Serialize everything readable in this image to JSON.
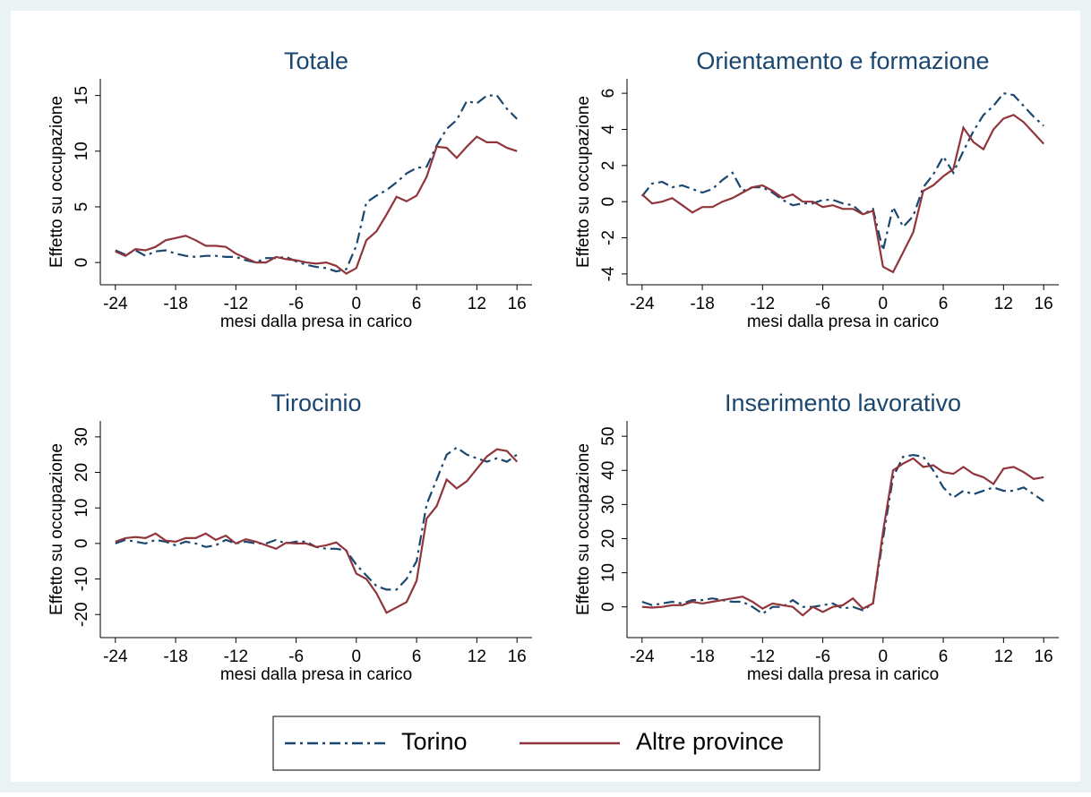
{
  "chart_data": [
    {
      "type": "line",
      "title": "Totale",
      "xlabel": "mesi dalla presa in carico",
      "ylabel": "Effetto su occupazione",
      "x": [
        -24,
        -23,
        -22,
        -21,
        -20,
        -19,
        -18,
        -17,
        -16,
        -15,
        -14,
        -13,
        -12,
        -11,
        -10,
        -9,
        -8,
        -7,
        -6,
        -5,
        -4,
        -3,
        -2,
        -1,
        0,
        1,
        2,
        3,
        4,
        5,
        6,
        7,
        8,
        9,
        10,
        11,
        12,
        13,
        14,
        15,
        16
      ],
      "xlim": [
        -25.5,
        17.5
      ],
      "xticks": [
        -24,
        -18,
        -12,
        -6,
        0,
        6,
        12,
        16
      ],
      "ylim": [
        -2,
        16.5
      ],
      "yticks": [
        0,
        5,
        10,
        15
      ],
      "series": [
        {
          "values": [
            1.1,
            0.7,
            1.1,
            0.6,
            1.0,
            1.1,
            0.8,
            0.6,
            0.5,
            0.6,
            0.6,
            0.5,
            0.5,
            0.2,
            0.0,
            0.4,
            0.4,
            0.5,
            0.1,
            -0.2,
            -0.4,
            -0.5,
            -0.8,
            -0.6,
            1.5,
            5.4,
            6.0,
            6.5,
            7.2,
            8.0,
            8.5,
            8.6,
            10.5,
            12.0,
            12.8,
            14.5,
            14.3,
            15.0,
            15.0,
            13.8,
            12.9
          ]
        },
        {
          "values": [
            1.0,
            0.6,
            1.2,
            1.1,
            1.4,
            2.0,
            2.2,
            2.4,
            2.0,
            1.5,
            1.5,
            1.4,
            0.8,
            0.4,
            0.0,
            0.0,
            0.5,
            0.3,
            0.2,
            0.0,
            -0.1,
            0.0,
            -0.3,
            -1.0,
            -0.5,
            2.0,
            2.8,
            4.3,
            5.9,
            5.5,
            6.0,
            7.7,
            10.4,
            10.3,
            9.4,
            10.4,
            11.3,
            10.8,
            10.8,
            10.3,
            10.0
          ]
        }
      ]
    },
    {
      "type": "line",
      "title": "Orientamento e formazione",
      "xlabel": "mesi dalla presa in carico",
      "ylabel": "Effetto su occupazione",
      "x": [
        -24,
        -23,
        -22,
        -21,
        -20,
        -19,
        -18,
        -17,
        -16,
        -15,
        -14,
        -13,
        -12,
        -11,
        -10,
        -9,
        -8,
        -7,
        -6,
        -5,
        -4,
        -3,
        -2,
        -1,
        0,
        1,
        2,
        3,
        4,
        5,
        6,
        7,
        8,
        9,
        10,
        11,
        12,
        13,
        14,
        15,
        16
      ],
      "xlim": [
        -25.5,
        17.5
      ],
      "xticks": [
        -24,
        -18,
        -12,
        -6,
        0,
        6,
        12,
        16
      ],
      "ylim": [
        -4.6,
        6.8
      ],
      "yticks": [
        -4,
        -2,
        0,
        2,
        4,
        6
      ],
      "series": [
        {
          "values": [
            0.3,
            1.0,
            1.1,
            0.8,
            0.9,
            0.7,
            0.5,
            0.7,
            1.2,
            1.6,
            0.6,
            0.8,
            0.8,
            0.5,
            0.1,
            -0.2,
            -0.1,
            -0.1,
            0.1,
            0.1,
            -0.1,
            -0.2,
            -0.7,
            -0.4,
            -2.7,
            -0.3,
            -1.4,
            -0.8,
            0.8,
            1.5,
            2.5,
            1.6,
            2.8,
            3.9,
            4.8,
            5.3,
            6.0,
            5.9,
            5.3,
            4.7,
            4.2
          ]
        },
        {
          "values": [
            0.4,
            -0.1,
            0.0,
            0.2,
            -0.2,
            -0.6,
            -0.3,
            -0.3,
            0.0,
            0.2,
            0.5,
            0.8,
            0.9,
            0.6,
            0.2,
            0.4,
            0.0,
            0.0,
            -0.3,
            -0.2,
            -0.4,
            -0.4,
            -0.7,
            -0.5,
            -3.6,
            -3.9,
            -2.8,
            -1.7,
            0.6,
            0.9,
            1.4,
            1.8,
            4.1,
            3.3,
            2.9,
            4.0,
            4.6,
            4.8,
            4.4,
            3.8,
            3.2
          ]
        }
      ]
    },
    {
      "type": "line",
      "title": "Tirocinio",
      "xlabel": "mesi dalla presa in carico",
      "ylabel": "Effetto su occupazione",
      "x": [
        -24,
        -23,
        -22,
        -21,
        -20,
        -19,
        -18,
        -17,
        -16,
        -15,
        -14,
        -13,
        -12,
        -11,
        -10,
        -9,
        -8,
        -7,
        -6,
        -5,
        -4,
        -3,
        -2,
        -1,
        0,
        1,
        2,
        3,
        4,
        5,
        6,
        7,
        8,
        9,
        10,
        11,
        12,
        13,
        14,
        15,
        16
      ],
      "xlim": [
        -25.5,
        17.5
      ],
      "xticks": [
        -24,
        -18,
        -12,
        -6,
        0,
        6,
        12,
        16
      ],
      "ylim": [
        -26.5,
        34.5
      ],
      "yticks": [
        -20,
        -10,
        0,
        10,
        20,
        30
      ],
      "series": [
        {
          "values": [
            0,
            1,
            0.5,
            0,
            1,
            0.5,
            -0.5,
            0.5,
            0,
            -1,
            -0.5,
            1,
            0,
            0.5,
            0,
            0,
            1,
            0,
            0.5,
            0.5,
            -1,
            -1.5,
            -1.5,
            -2,
            -6,
            -9,
            -12,
            -13,
            -13,
            -10,
            -5,
            11,
            18,
            25,
            27,
            25,
            24,
            23,
            24,
            23,
            25
          ]
        },
        {
          "values": [
            0.5,
            1.5,
            1.8,
            1.5,
            2.8,
            0.8,
            0.5,
            1.5,
            1.5,
            2.8,
            1,
            2.2,
            0,
            1.2,
            0.5,
            -0.5,
            -1.5,
            0.2,
            0,
            0,
            -1,
            -0.5,
            0.3,
            -2,
            -8.5,
            -10,
            -14,
            -19.5,
            -18,
            -16.5,
            -10.5,
            7,
            10.5,
            18,
            15.5,
            17.5,
            21,
            24.5,
            26.5,
            26,
            23
          ]
        }
      ]
    },
    {
      "type": "line",
      "title": "Inserimento lavorativo",
      "xlabel": "mesi dalla presa in carico",
      "ylabel": "Effetto su occupazione",
      "x": [
        -24,
        -23,
        -22,
        -21,
        -20,
        -19,
        -18,
        -17,
        -16,
        -15,
        -14,
        -13,
        -12,
        -11,
        -10,
        -9,
        -8,
        -7,
        -6,
        -5,
        -4,
        -3,
        -2,
        -1,
        0,
        1,
        2,
        3,
        4,
        5,
        6,
        7,
        8,
        9,
        10,
        11,
        12,
        13,
        14,
        15,
        16
      ],
      "xlim": [
        -25.5,
        17.5
      ],
      "xticks": [
        -24,
        -18,
        -12,
        -6,
        0,
        6,
        12,
        16
      ],
      "ylim": [
        -9,
        54.5
      ],
      "yticks": [
        0,
        10,
        20,
        30,
        40,
        50
      ],
      "series": [
        {
          "values": [
            1.5,
            0.5,
            1,
            1.5,
            1,
            2,
            2,
            2.5,
            2,
            1.5,
            1.5,
            0,
            -2,
            0,
            0,
            2,
            0,
            0,
            0.5,
            1,
            -0.5,
            0,
            -1,
            1,
            20,
            38,
            44,
            44.5,
            44,
            40,
            35,
            32,
            34,
            33,
            34,
            35,
            34,
            34,
            35,
            33,
            31
          ]
        },
        {
          "values": [
            0,
            -0.2,
            0,
            0.5,
            0.5,
            1.5,
            1,
            1.5,
            2,
            2.5,
            3,
            1.5,
            -0.5,
            1,
            0.5,
            0,
            -2.5,
            0,
            -1.5,
            0,
            0.5,
            2.5,
            -0.5,
            1,
            22,
            40,
            42,
            43.5,
            41,
            41.5,
            39.5,
            39,
            41,
            39,
            38,
            36,
            40.5,
            41,
            39.5,
            37.5,
            38
          ]
        }
      ]
    }
  ],
  "legend": {
    "series": [
      {
        "name": "Torino",
        "color": "#1a476f",
        "style": "dash-dot"
      },
      {
        "name": "Altre province",
        "color": "#90353b",
        "style": "solid"
      }
    ]
  }
}
